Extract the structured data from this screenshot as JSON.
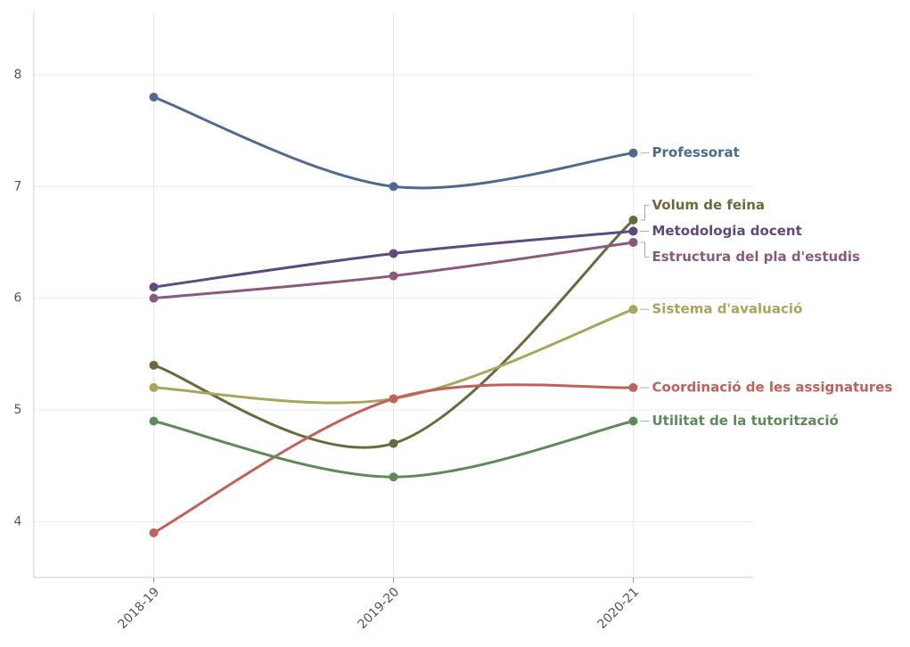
{
  "chart_data": {
    "type": "line",
    "categories": [
      "2018-19",
      "2019-20",
      "2020-21"
    ],
    "series": [
      {
        "name": "Professorat",
        "color": "#4f6a8f",
        "values": [
          7.8,
          7.0,
          7.3
        ]
      },
      {
        "name": "Volum de feina",
        "color": "#6b6a3f",
        "values": [
          5.4,
          4.7,
          6.7
        ]
      },
      {
        "name": "Metodologia docent",
        "color": "#5d4a7e",
        "values": [
          6.1,
          6.4,
          6.6
        ]
      },
      {
        "name": "Estructura del pla d'estudis",
        "color": "#8b5a7a",
        "values": [
          6.0,
          6.2,
          6.5
        ]
      },
      {
        "name": "Sistema d'avaluació",
        "color": "#a8a65a",
        "values": [
          5.2,
          5.1,
          5.9
        ]
      },
      {
        "name": "Coordinació de les assignatures",
        "color": "#c0625a",
        "values": [
          3.9,
          5.1,
          5.2
        ]
      },
      {
        "name": "Utilitat de la tutorització",
        "color": "#5e8a5a",
        "values": [
          4.9,
          4.4,
          4.9
        ]
      }
    ],
    "ylim": [
      3.5,
      8.55
    ],
    "yticks": [
      4,
      5,
      6,
      7,
      8
    ],
    "grid": true
  }
}
